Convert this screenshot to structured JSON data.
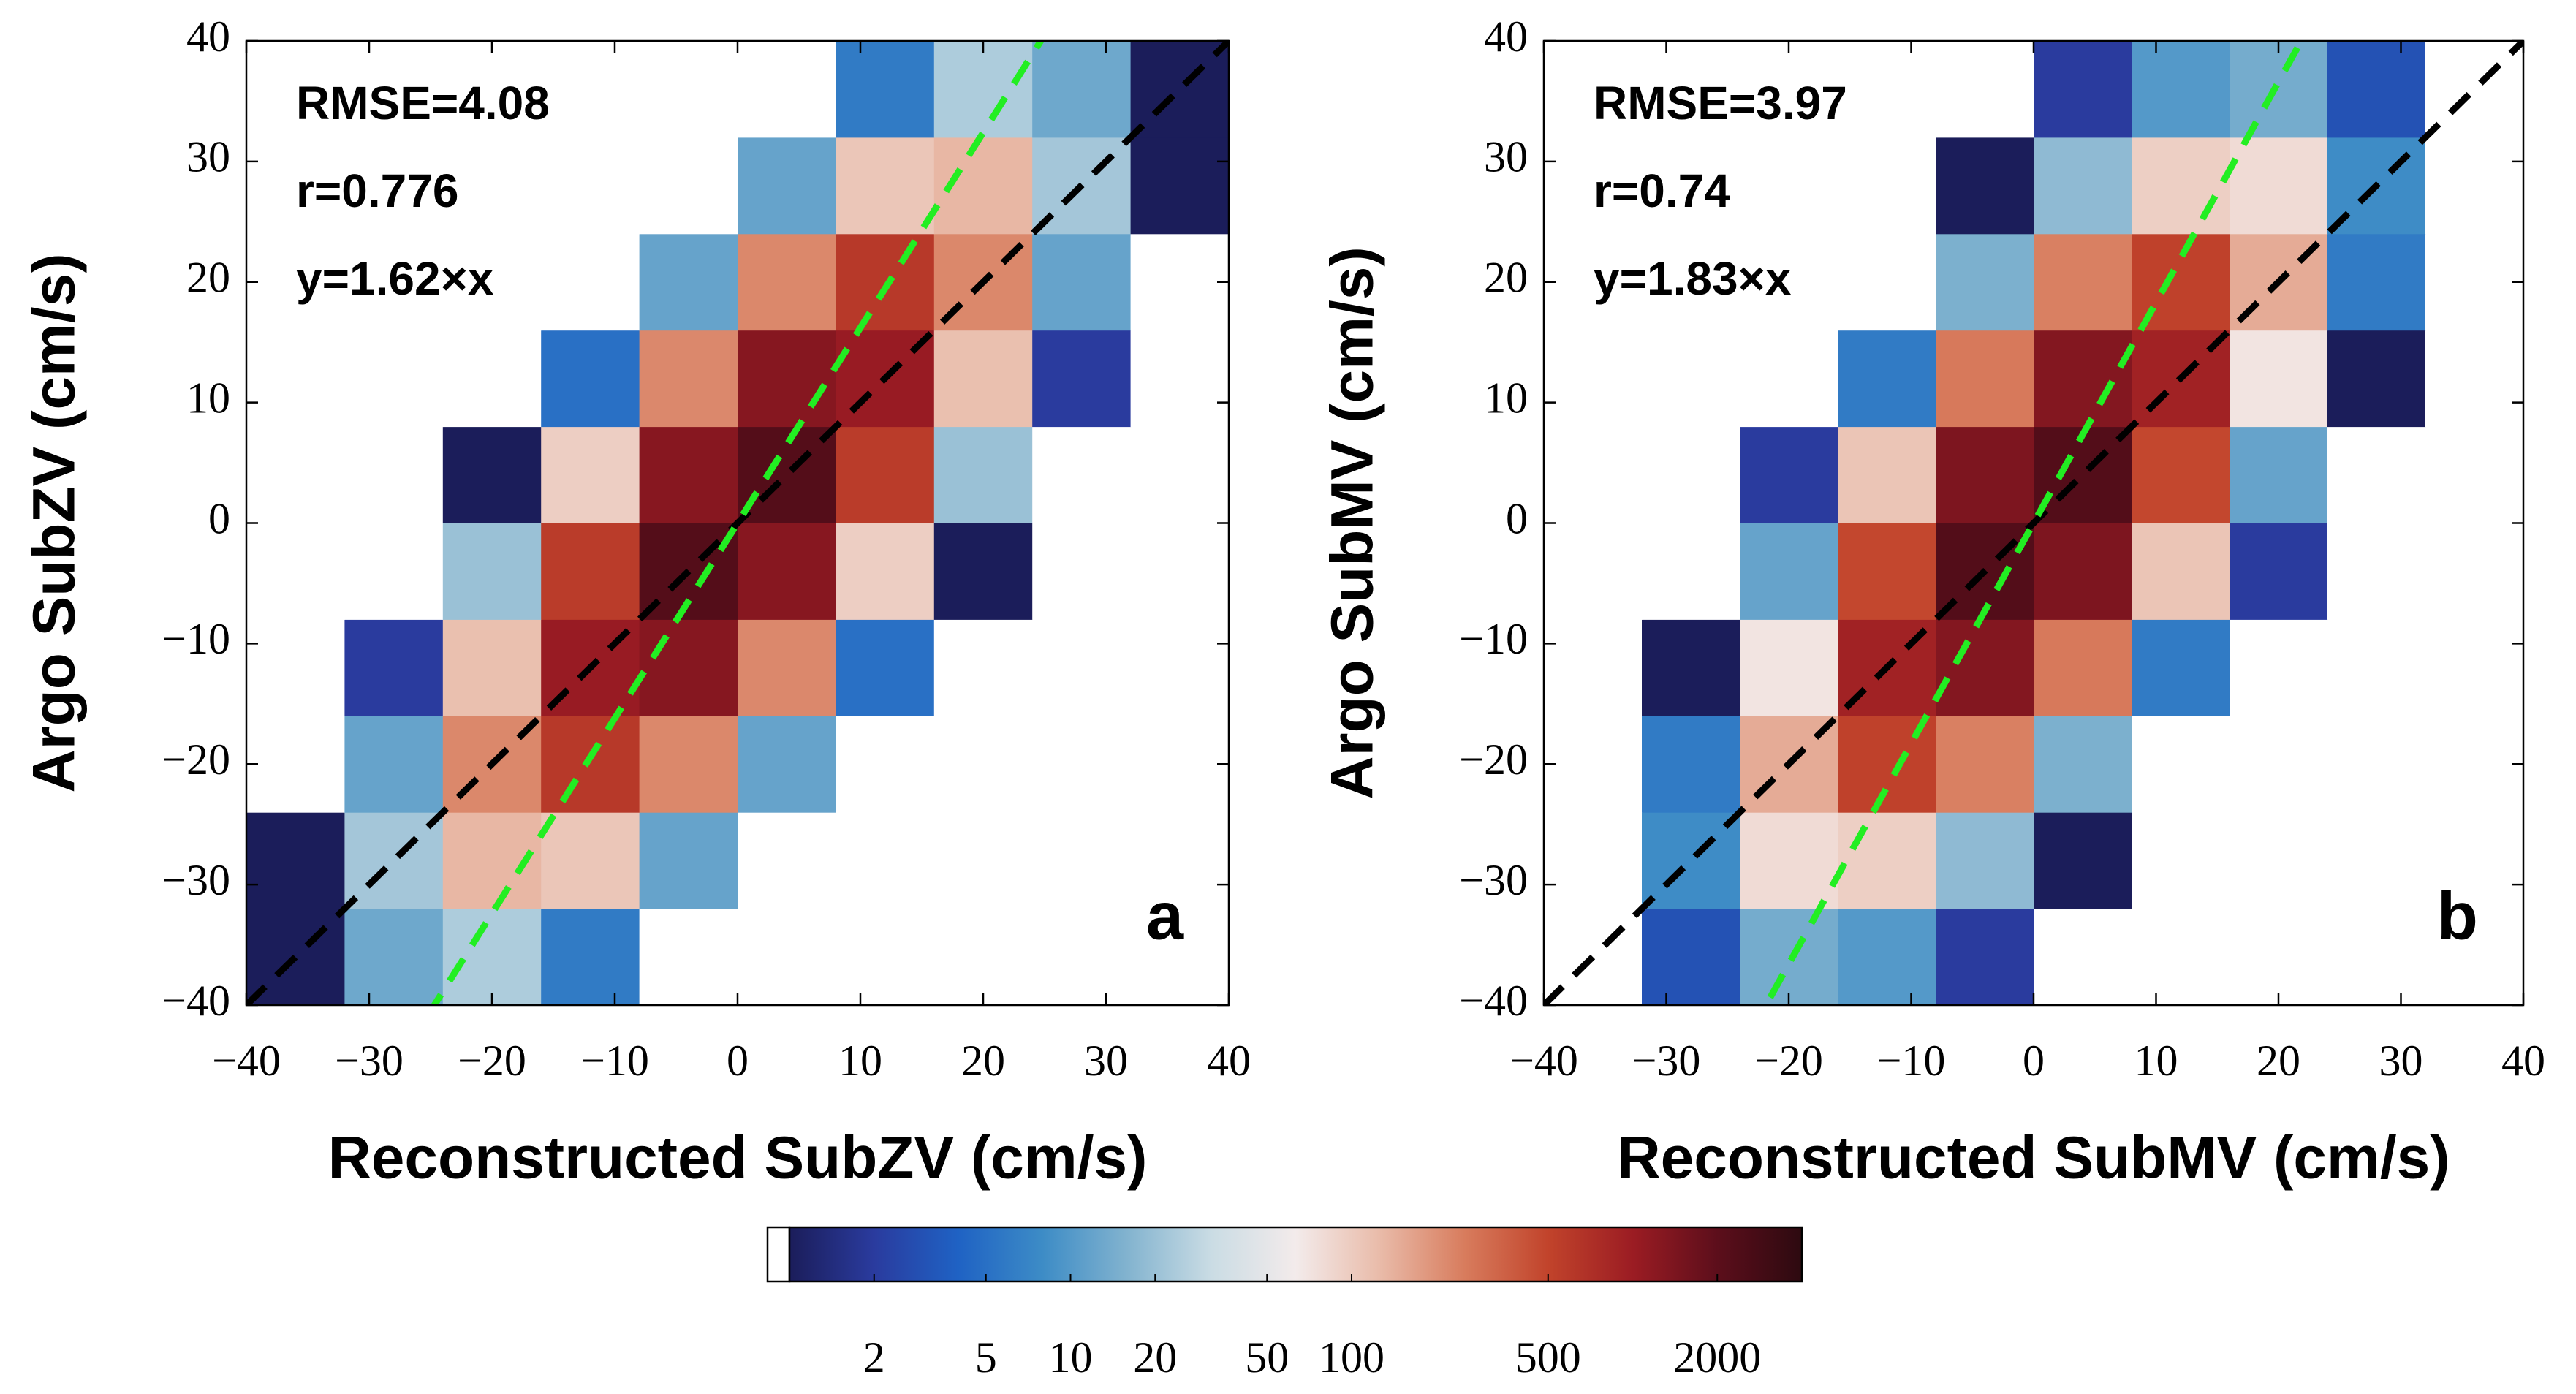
{
  "chart_data": [
    {
      "type": "heatmap",
      "panel_label": "a",
      "xlabel": "Reconstructed SubZV (cm/s)",
      "ylabel": "Argo SubZV (cm/s)",
      "annotations": [
        "RMSE=4.08",
        "r=0.776",
        "y=1.62×x"
      ],
      "xlim": [
        -40,
        40
      ],
      "ylim": [
        -40,
        40
      ],
      "xticks": [
        {
          "value": -40,
          "label": "−40"
        },
        {
          "value": -30,
          "label": "−30"
        },
        {
          "value": -20,
          "label": "−20"
        },
        {
          "value": -10,
          "label": "−10"
        },
        0,
        10,
        20,
        30,
        40
      ],
      "yticks": [
        {
          "value": -40,
          "label": "−40"
        },
        {
          "value": -30,
          "label": "−30"
        },
        {
          "value": -20,
          "label": "−20"
        },
        {
          "value": -10,
          "label": "−10"
        },
        0,
        10,
        20,
        30,
        40
      ],
      "xbins": [
        -40,
        -32,
        -24,
        -16,
        -8,
        0,
        8,
        16,
        24,
        32,
        40
      ],
      "ybins": [
        -40,
        -32,
        -24,
        -16,
        -8,
        0,
        8,
        16,
        24,
        32,
        40
      ],
      "counts": [
        [
          1,
          13,
          24,
          6,
          0,
          0,
          0,
          0,
          0,
          0
        ],
        [
          1,
          22,
          132,
          108,
          12,
          0,
          0,
          0,
          0,
          0
        ],
        [
          0,
          12,
          222,
          598,
          222,
          12,
          0,
          0,
          0,
          0
        ],
        [
          0,
          2,
          118,
          1037,
          1267,
          220,
          5,
          0,
          0,
          0
        ],
        [
          0,
          0,
          20,
          569,
          2240,
          1254,
          96,
          1,
          0,
          0
        ],
        [
          0,
          0,
          1,
          96,
          1254,
          2240,
          569,
          20,
          0,
          0
        ],
        [
          0,
          0,
          0,
          5,
          220,
          1267,
          1037,
          118,
          2,
          0
        ],
        [
          0,
          0,
          0,
          0,
          12,
          222,
          598,
          222,
          12,
          0
        ],
        [
          0,
          0,
          0,
          0,
          0,
          12,
          108,
          132,
          22,
          1
        ],
        [
          0,
          0,
          0,
          0,
          0,
          0,
          6,
          24,
          13,
          1
        ]
      ],
      "lines": [
        {
          "slope": 1,
          "color": "#000000"
        },
        {
          "slope": 1.62,
          "color": "#22ee22"
        }
      ]
    },
    {
      "type": "heatmap",
      "panel_label": "b",
      "xlabel": "Reconstructed SubMV (cm/s)",
      "ylabel": "Argo SubMV (cm/s)",
      "annotations": [
        "RMSE=3.97",
        "r=0.74",
        "y=1.83×x"
      ],
      "xlim": [
        -40,
        40
      ],
      "ylim": [
        -40,
        40
      ],
      "xticks": [
        {
          "value": -40,
          "label": "−40"
        },
        {
          "value": -30,
          "label": "−30"
        },
        {
          "value": -20,
          "label": "−20"
        },
        {
          "value": -10,
          "label": "−10"
        },
        0,
        10,
        20,
        30,
        40
      ],
      "yticks": [
        {
          "value": -40,
          "label": "−40"
        },
        {
          "value": -30,
          "label": "−30"
        },
        {
          "value": -20,
          "label": "−20"
        },
        {
          "value": -10,
          "label": "−10"
        },
        0,
        10,
        20,
        30,
        40
      ],
      "xbins": [
        -40,
        -32,
        -24,
        -16,
        -8,
        0,
        8,
        16,
        24,
        32,
        40
      ],
      "ybins": [
        -40,
        -32,
        -24,
        -16,
        -8,
        0,
        8,
        16,
        24,
        32,
        40
      ],
      "counts": [
        [
          0,
          3,
          14,
          10,
          2,
          0,
          0,
          0,
          0,
          0
        ],
        [
          0,
          8,
          80,
          95,
          18,
          1,
          0,
          0,
          0,
          0
        ],
        [
          0,
          6,
          150,
          520,
          240,
          15,
          0,
          0,
          0,
          0
        ],
        [
          0,
          1,
          70,
          900,
          1300,
          260,
          6,
          0,
          0,
          0
        ],
        [
          0,
          0,
          12,
          480,
          2300,
          1400,
          110,
          2,
          0,
          0
        ],
        [
          0,
          0,
          2,
          110,
          1400,
          2300,
          480,
          12,
          0,
          0
        ],
        [
          0,
          0,
          0,
          6,
          260,
          1300,
          900,
          70,
          1,
          0
        ],
        [
          0,
          0,
          0,
          0,
          15,
          240,
          520,
          150,
          6,
          0
        ],
        [
          0,
          0,
          0,
          0,
          1,
          18,
          95,
          80,
          8,
          0
        ],
        [
          0,
          0,
          0,
          0,
          0,
          2,
          10,
          14,
          3,
          0
        ]
      ],
      "lines": [
        {
          "slope": 1,
          "color": "#000000"
        },
        {
          "slope": 1.83,
          "color": "#22ee22"
        }
      ]
    }
  ],
  "colorbar": {
    "scale": "log",
    "clim": [
      1,
      4000
    ],
    "ticks": [
      2,
      5,
      10,
      20,
      50,
      100,
      500,
      2000
    ],
    "colormap": [
      "#1b1d5a",
      "#2a3b9e",
      "#1f62c4",
      "#3d8cc6",
      "#82b3cf",
      "#cadce4",
      "#f3ebeb",
      "#e9bba9",
      "#d87c5d",
      "#c1432b",
      "#9b1c23",
      "#5c0e1b",
      "#2d0a10"
    ]
  }
}
